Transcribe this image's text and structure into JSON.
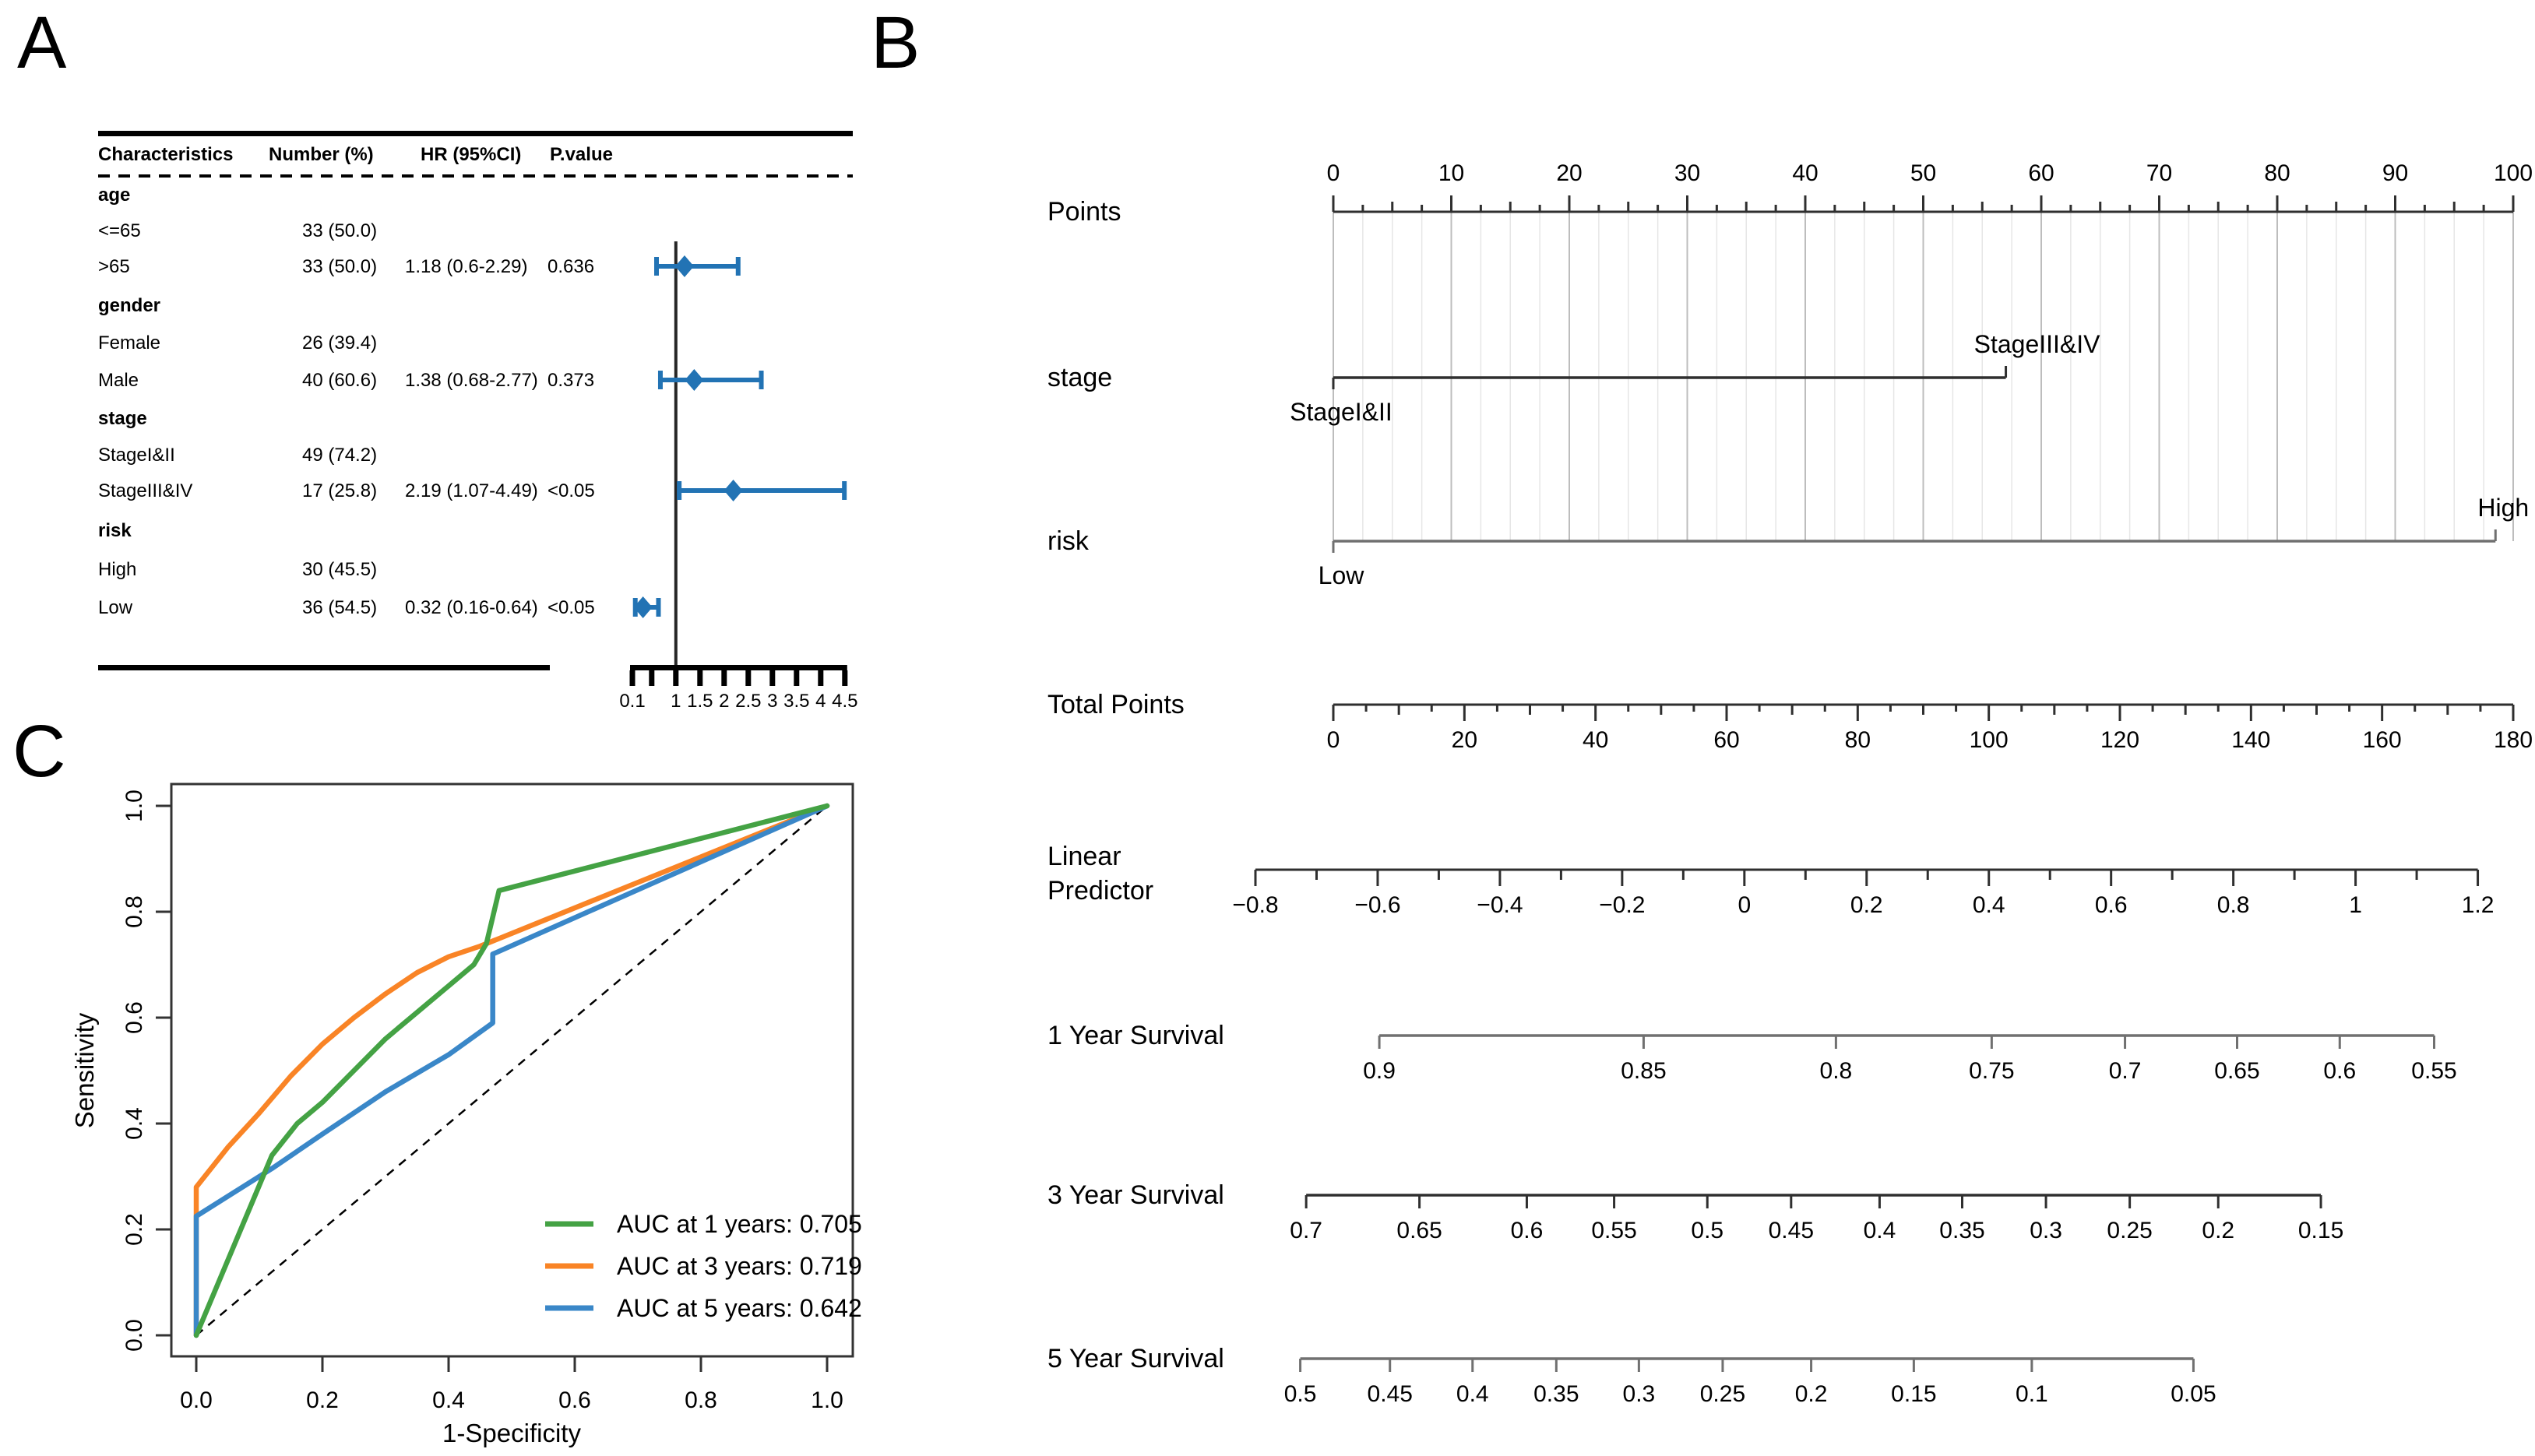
{
  "figure": {
    "panel_a_label": "A",
    "panel_b_label": "B",
    "panel_c_label": "C"
  },
  "chart_data": [
    {
      "type": "table",
      "name": "forest-plot",
      "columns": [
        "Characteristics",
        "Number (%)",
        "HR (95%CI)",
        "P.value"
      ],
      "rows": [
        {
          "label": "age",
          "bold": true
        },
        {
          "label": "<=65",
          "number": "33 (50.0)"
        },
        {
          "label": ">65",
          "number": "33 (50.0)",
          "hr_text": "1.18 (0.6-2.29)",
          "p": "0.636",
          "hr": 1.18,
          "lo": 0.6,
          "hi": 2.29
        },
        {
          "label": "gender",
          "bold": true
        },
        {
          "label": "Female",
          "number": "26 (39.4)"
        },
        {
          "label": "Male",
          "number": "40 (60.6)",
          "hr_text": "1.38 (0.68-2.77)",
          "p": "0.373",
          "hr": 1.38,
          "lo": 0.68,
          "hi": 2.77
        },
        {
          "label": "stage",
          "bold": true
        },
        {
          "label": "StageI&II",
          "number": "49 (74.2)"
        },
        {
          "label": "StageIII&IV",
          "number": "17 (25.8)",
          "hr_text": "2.19 (1.07-4.49)",
          "p": "<0.05",
          "hr": 2.19,
          "lo": 1.07,
          "hi": 4.49
        },
        {
          "label": "risk",
          "bold": true
        },
        {
          "label": "High",
          "number": "30 (45.5)"
        },
        {
          "label": "Low",
          "number": "36 (54.5)",
          "hr_text": "0.32 (0.16-0.64)",
          "p": "<0.05",
          "hr": 0.32,
          "lo": 0.16,
          "hi": 0.64
        }
      ],
      "axis_ticks": [
        {
          "v": 0.1,
          "label": "0.1"
        },
        {
          "v": 0.5,
          "label": null
        },
        {
          "v": 1,
          "label": "1"
        },
        {
          "v": 1.5,
          "label": "1.5"
        },
        {
          "v": 2,
          "label": "2"
        },
        {
          "v": 2.5,
          "label": "2.5"
        },
        {
          "v": 3,
          "label": "3"
        },
        {
          "v": 3.5,
          "label": "3.5"
        },
        {
          "v": 4,
          "label": "4"
        },
        {
          "v": 4.5,
          "label": "4.5"
        }
      ],
      "axis_range": [
        0.1,
        4.5
      ],
      "ref_line": 1,
      "marker_color": "#2273b4"
    },
    {
      "type": "nomogram",
      "name": "nomogram",
      "rows": [
        {
          "kind": "ruler",
          "label": "Points",
          "min": 0,
          "max": 100,
          "p0": 0,
          "p1": 100,
          "minor_step": 2.5,
          "med_step": 5,
          "label_step": 10,
          "side": "up",
          "tick_labels": [
            "0",
            "10",
            "20",
            "30",
            "40",
            "50",
            "60",
            "70",
            "80",
            "90",
            "100"
          ]
        },
        {
          "kind": "segment",
          "label": "stage",
          "p0": 0,
          "p1": 57,
          "start_label": "StageI&II",
          "end_label": "StageIII&IV"
        },
        {
          "kind": "segment",
          "label": "risk",
          "p0": 0,
          "p1": 98.5,
          "start_label": "Low",
          "end_label": "High"
        },
        {
          "kind": "ruler",
          "label": "Total Points",
          "min": 0,
          "max": 180,
          "p0": 0,
          "p1": 100,
          "minor_step": 5,
          "med_step": 10,
          "label_step": 20,
          "side": "down",
          "tick_labels": [
            "0",
            "20",
            "40",
            "60",
            "80",
            "100",
            "120",
            "140",
            "160",
            "180"
          ]
        },
        {
          "kind": "ruler",
          "label": "Linear Predictor",
          "label_lines": [
            "Linear",
            "Predictor"
          ],
          "min": -0.8,
          "max": 1.2,
          "p0": -6.6,
          "p1": 97.0,
          "minor_step": 0.1,
          "med_step": 0.1,
          "label_step": 0.2,
          "side": "down",
          "tick_labels": [
            "−0.8",
            "−0.6",
            "−0.4",
            "−0.2",
            "0",
            "0.2",
            "0.4",
            "0.6",
            "0.8",
            "1",
            "1.2"
          ]
        },
        {
          "kind": "ticks",
          "label": "1 Year Survival",
          "ticks": [
            [
              "0.9",
              3.9
            ],
            [
              "0.85",
              26.3
            ],
            [
              "0.8",
              42.6
            ],
            [
              "0.75",
              55.8
            ],
            [
              "0.7",
              67.1
            ],
            [
              "0.65",
              76.6
            ],
            [
              "0.6",
              85.3
            ],
            [
              "0.55",
              93.3
            ]
          ]
        },
        {
          "kind": "ticks",
          "label": "3 Year Survival",
          "ticks": [
            [
              "0.7",
              -2.3
            ],
            [
              "0.65",
              7.3
            ],
            [
              "0.6",
              16.4
            ],
            [
              "0.55",
              23.8
            ],
            [
              "0.5",
              31.7
            ],
            [
              "0.45",
              38.8
            ],
            [
              "0.4",
              46.3
            ],
            [
              "0.35",
              53.3
            ],
            [
              "0.3",
              60.4
            ],
            [
              "0.25",
              67.5
            ],
            [
              "0.2",
              75.0
            ],
            [
              "0.15",
              83.7
            ]
          ]
        },
        {
          "kind": "ticks",
          "label": "5 Year Survival",
          "ticks": [
            [
              "0.5",
              -2.8
            ],
            [
              "0.45",
              4.8
            ],
            [
              "0.4",
              11.8
            ],
            [
              "0.35",
              18.9
            ],
            [
              "0.3",
              25.9
            ],
            [
              "0.25",
              33.0
            ],
            [
              "0.2",
              40.5
            ],
            [
              "0.15",
              49.2
            ],
            [
              "0.1",
              59.2
            ],
            [
              "0.05",
              72.9
            ]
          ]
        }
      ]
    },
    {
      "type": "line",
      "name": "roc",
      "xlabel": "1-Specificity",
      "ylabel": "Sensitivity",
      "xticks": [
        "0.0",
        "0.2",
        "0.4",
        "0.6",
        "0.8",
        "1.0"
      ],
      "yticks": [
        "0.0",
        "0.2",
        "0.4",
        "0.6",
        "0.8",
        "1.0"
      ],
      "xlim": [
        0,
        1
      ],
      "ylim": [
        0,
        1
      ],
      "diagonal": true,
      "legend_position": "bottom-right",
      "series": [
        {
          "name": "AUC at 1 years: 0.705",
          "color": "#44a244",
          "points": [
            [
              0,
              0
            ],
            [
              0.06,
              0.17
            ],
            [
              0.12,
              0.34
            ],
            [
              0.16,
              0.4
            ],
            [
              0.2,
              0.44
            ],
            [
              0.25,
              0.5
            ],
            [
              0.3,
              0.56
            ],
            [
              0.35,
              0.61
            ],
            [
              0.4,
              0.66
            ],
            [
              0.44,
              0.7
            ],
            [
              0.46,
              0.74
            ],
            [
              0.48,
              0.84
            ],
            [
              1,
              1
            ]
          ]
        },
        {
          "name": "AUC at 3 years: 0.719",
          "color": "#f98426",
          "points": [
            [
              0,
              0
            ],
            [
              0,
              0.28
            ],
            [
              0.05,
              0.355
            ],
            [
              0.1,
              0.42
            ],
            [
              0.15,
              0.49
            ],
            [
              0.2,
              0.55
            ],
            [
              0.25,
              0.6
            ],
            [
              0.3,
              0.645
            ],
            [
              0.35,
              0.685
            ],
            [
              0.4,
              0.715
            ],
            [
              0.45,
              0.735
            ],
            [
              1,
              1
            ]
          ]
        },
        {
          "name": "AUC at 5 years: 0.642",
          "color": "#3a87c8",
          "points": [
            [
              0,
              0
            ],
            [
              0,
              0.225
            ],
            [
              0.06,
              0.27
            ],
            [
              0.12,
              0.315
            ],
            [
              0.2,
              0.38
            ],
            [
              0.3,
              0.46
            ],
            [
              0.4,
              0.53
            ],
            [
              0.47,
              0.59
            ],
            [
              0.47,
              0.72
            ],
            [
              1,
              1
            ]
          ]
        }
      ]
    }
  ]
}
